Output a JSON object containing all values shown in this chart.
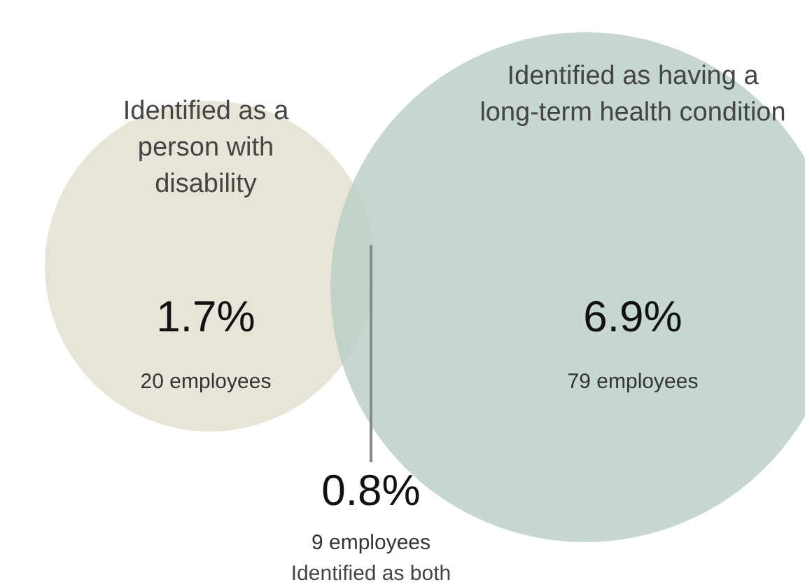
{
  "chart_data": {
    "type": "other",
    "categories": [
      "Identified as a person with disability",
      "Identified as having a long-term health condition",
      "Identified as both"
    ],
    "colors": [
      "#e8e5d8",
      "#b8cec3"
    ],
    "series": [
      {
        "values": [
          1.7,
          6.9,
          0.8
        ],
        "value_labels": [
          "1.7%",
          "6.9%",
          "0.8%"
        ]
      },
      {
        "values": [
          20,
          79,
          9
        ],
        "value_labels": [
          "20 employees",
          "79 employees",
          "9 employees"
        ]
      }
    ]
  }
}
